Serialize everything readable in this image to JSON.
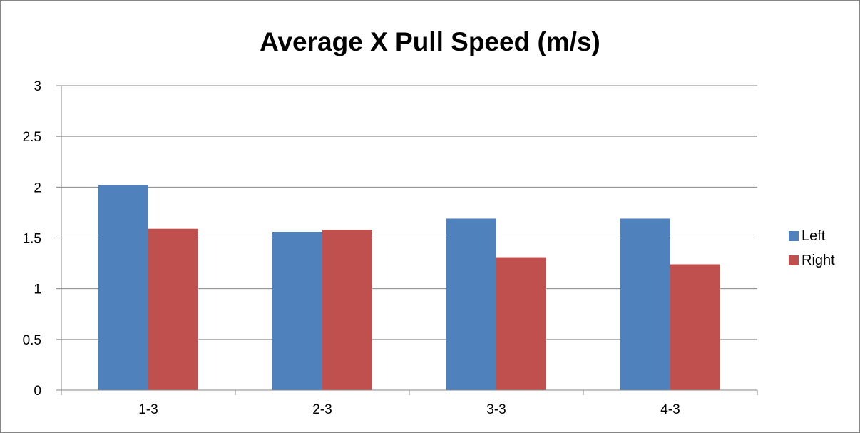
{
  "chart_data": {
    "type": "bar",
    "title": "Average X Pull Speed (m/s)",
    "categories": [
      "1-3",
      "2-3",
      "3-3",
      "4-3"
    ],
    "series": [
      {
        "name": "Left",
        "color": "#4F81BD",
        "values": [
          2.02,
          1.56,
          1.69,
          1.69
        ]
      },
      {
        "name": "Right",
        "color": "#C0504D",
        "values": [
          1.59,
          1.58,
          1.31,
          1.24
        ]
      }
    ],
    "yticks": [
      "0",
      "0.5",
      "1",
      "1.5",
      "2",
      "2.5",
      "3"
    ],
    "ylim": [
      0,
      3
    ],
    "grid": true,
    "legend_position": "right"
  }
}
